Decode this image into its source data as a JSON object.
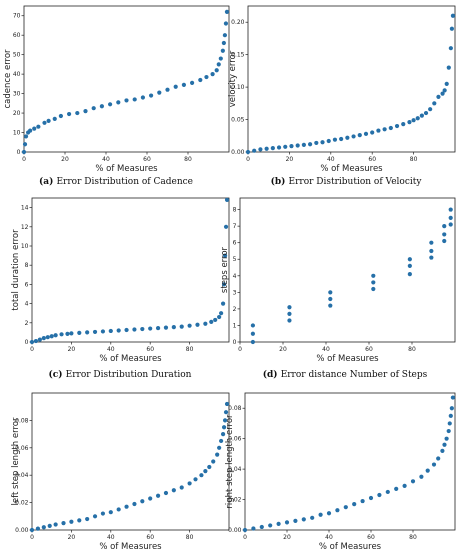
{
  "colors": {
    "series": "#2670a8",
    "axis": "#222222",
    "background": "#ffffff"
  },
  "chart_data": [
    {
      "type": "scatter",
      "caption_letter": "(a)",
      "caption_text": "Error Distribution of Cadence",
      "xlabel": "% of Measures",
      "ylabel": "cadence error",
      "xlim": [
        0,
        100
      ],
      "ylim": [
        0,
        75
      ],
      "xticks": [
        0,
        20,
        40,
        60,
        80
      ],
      "yticks": [
        0,
        10,
        20,
        30,
        40,
        50,
        60,
        70
      ],
      "x": [
        0,
        0.5,
        1,
        2,
        3,
        5,
        7,
        10,
        12,
        15,
        18,
        22,
        26,
        30,
        34,
        38,
        42,
        46,
        50,
        54,
        58,
        62,
        66,
        70,
        74,
        78,
        82,
        86,
        89,
        92,
        94,
        95,
        96,
        97,
        97.5,
        98,
        98.5,
        99
      ],
      "y": [
        0,
        4,
        8,
        10,
        11,
        12,
        13,
        15,
        16,
        17,
        18.5,
        19.5,
        20,
        21,
        22.5,
        23.5,
        24.5,
        25.5,
        26.5,
        27,
        28,
        29,
        30.5,
        32,
        33.5,
        34.5,
        35.5,
        37,
        38.5,
        40,
        42,
        45,
        48,
        52,
        56,
        60,
        66,
        72
      ]
    },
    {
      "type": "scatter",
      "caption_letter": "(b)",
      "caption_text": "Error Distribution of Velocity",
      "xlabel": "% of Measures",
      "ylabel": "velocity error",
      "xlim": [
        0,
        100
      ],
      "ylim": [
        0,
        0.225
      ],
      "xticks": [
        0,
        20,
        40,
        60,
        80
      ],
      "yticks": [
        0.0,
        0.05,
        0.1,
        0.15,
        0.2
      ],
      "y_tick_decimals": 2,
      "x": [
        0,
        3,
        6,
        9,
        12,
        15,
        18,
        21,
        24,
        27,
        30,
        33,
        36,
        39,
        42,
        45,
        48,
        51,
        54,
        57,
        60,
        63,
        66,
        69,
        72,
        75,
        78,
        80,
        82,
        84,
        86,
        88,
        90,
        92,
        94,
        95,
        96,
        97,
        98,
        98.5,
        99
      ],
      "y": [
        0.0,
        0.002,
        0.004,
        0.005,
        0.006,
        0.007,
        0.008,
        0.009,
        0.01,
        0.011,
        0.012,
        0.014,
        0.015,
        0.017,
        0.019,
        0.02,
        0.022,
        0.024,
        0.026,
        0.028,
        0.03,
        0.033,
        0.035,
        0.037,
        0.04,
        0.043,
        0.046,
        0.049,
        0.052,
        0.056,
        0.06,
        0.066,
        0.075,
        0.085,
        0.09,
        0.095,
        0.105,
        0.13,
        0.16,
        0.19,
        0.21
      ]
    },
    {
      "type": "scatter",
      "caption_letter": "(c)",
      "caption_text": "Error Distribution Duration",
      "xlabel": "% of Measures",
      "ylabel": "total duration error",
      "xlim": [
        0,
        100
      ],
      "ylim": [
        0,
        15
      ],
      "xticks": [
        0,
        20,
        40,
        60,
        80
      ],
      "yticks": [
        0,
        2,
        4,
        6,
        8,
        10,
        12,
        14
      ],
      "x": [
        0,
        2,
        4,
        6,
        8,
        10,
        12,
        15,
        18,
        20,
        24,
        28,
        32,
        36,
        40,
        44,
        48,
        52,
        56,
        60,
        64,
        68,
        72,
        76,
        80,
        84,
        88,
        91,
        93,
        95,
        96,
        97,
        97.5,
        98,
        98.5,
        99
      ],
      "y": [
        0,
        0.1,
        0.25,
        0.4,
        0.5,
        0.6,
        0.7,
        0.8,
        0.85,
        0.9,
        0.95,
        1.0,
        1.05,
        1.1,
        1.15,
        1.2,
        1.25,
        1.3,
        1.35,
        1.4,
        1.45,
        1.5,
        1.55,
        1.6,
        1.7,
        1.8,
        1.9,
        2.1,
        2.3,
        2.6,
        3.0,
        4.0,
        6.0,
        9.0,
        12.0,
        14.8
      ]
    },
    {
      "type": "scatter",
      "caption_letter": "(d)",
      "caption_text": "Error distance Number of Steps",
      "xlabel": "% of Measures",
      "ylabel": "steps error",
      "xlim": [
        0,
        100
      ],
      "ylim": [
        0,
        8.7
      ],
      "xticks": [
        0,
        20,
        40,
        60,
        80
      ],
      "yticks": [
        0,
        1,
        2,
        3,
        4,
        5,
        6,
        7,
        8
      ],
      "x": [
        6,
        6,
        6,
        23,
        23,
        23,
        42,
        42,
        42,
        62,
        62,
        62,
        79,
        79,
        79,
        89,
        89,
        89,
        95,
        95,
        95,
        98,
        98,
        98
      ],
      "y": [
        0,
        0.5,
        1,
        1.3,
        1.7,
        2.1,
        2.2,
        2.6,
        3,
        3.2,
        3.6,
        4,
        4.1,
        4.6,
        5,
        5.1,
        5.5,
        6,
        6.1,
        6.5,
        7,
        7.1,
        7.5,
        8
      ]
    },
    {
      "type": "scatter",
      "xlabel": "% of Measures",
      "ylabel": "left step length  error",
      "xlim": [
        0,
        100
      ],
      "ylim": [
        0,
        0.1
      ],
      "xticks": [
        0,
        20,
        40,
        60,
        80
      ],
      "yticks": [
        0.0,
        0.02,
        0.04,
        0.06,
        0.08
      ],
      "y_tick_decimals": 2,
      "x": [
        0,
        3,
        6,
        9,
        12,
        16,
        20,
        24,
        28,
        32,
        36,
        40,
        44,
        48,
        52,
        56,
        60,
        64,
        68,
        72,
        76,
        80,
        83,
        86,
        88,
        90,
        92,
        94,
        95,
        96,
        97,
        97.5,
        98,
        98.5,
        99
      ],
      "y": [
        0.0,
        0.001,
        0.002,
        0.003,
        0.004,
        0.005,
        0.006,
        0.007,
        0.008,
        0.01,
        0.012,
        0.013,
        0.015,
        0.017,
        0.019,
        0.021,
        0.023,
        0.025,
        0.027,
        0.029,
        0.031,
        0.034,
        0.037,
        0.04,
        0.043,
        0.046,
        0.05,
        0.055,
        0.06,
        0.065,
        0.07,
        0.075,
        0.08,
        0.086,
        0.092
      ]
    },
    {
      "type": "scatter",
      "xlabel": "% of Measures",
      "ylabel": "right step length error",
      "xlim": [
        0,
        100
      ],
      "ylim": [
        0,
        0.09
      ],
      "xticks": [
        0,
        20,
        40,
        60,
        80
      ],
      "yticks": [
        0.0,
        0.02,
        0.04,
        0.06,
        0.08
      ],
      "y_tick_decimals": 2,
      "x": [
        0,
        4,
        8,
        12,
        16,
        20,
        24,
        28,
        32,
        36,
        40,
        44,
        48,
        52,
        56,
        60,
        64,
        68,
        72,
        76,
        80,
        84,
        87,
        90,
        92,
        94,
        95,
        96,
        97,
        97.5,
        98,
        98.5,
        99
      ],
      "y": [
        0.0,
        0.001,
        0.002,
        0.003,
        0.004,
        0.005,
        0.006,
        0.007,
        0.008,
        0.01,
        0.011,
        0.013,
        0.015,
        0.017,
        0.019,
        0.021,
        0.023,
        0.025,
        0.027,
        0.029,
        0.032,
        0.035,
        0.039,
        0.043,
        0.047,
        0.052,
        0.056,
        0.06,
        0.065,
        0.07,
        0.075,
        0.08,
        0.087
      ]
    }
  ]
}
